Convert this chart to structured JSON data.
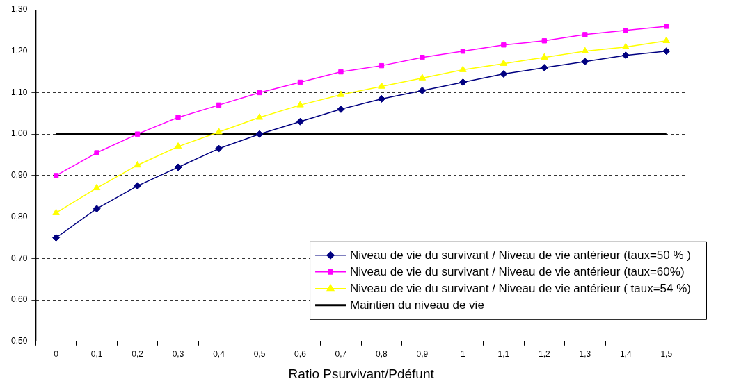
{
  "chart_data": {
    "type": "line",
    "xlabel": "Ratio Psurvivant/Pdéfunt",
    "categories": [
      "0",
      "0,1",
      "0,2",
      "0,3",
      "0,4",
      "0,5",
      "0,6",
      "0,7",
      "0,8",
      "0,9",
      "1",
      "1,1",
      "1,2",
      "1,3",
      "1,4",
      "1,5"
    ],
    "series": [
      {
        "name": "Niveau de vie du survivant / Niveau de vie antérieur (taux=50 % )",
        "color": "#000080",
        "marker": "diamond",
        "values": [
          0.75,
          0.82,
          0.875,
          0.92,
          0.965,
          1.0,
          1.03,
          1.06,
          1.085,
          1.105,
          1.125,
          1.145,
          1.16,
          1.175,
          1.19,
          1.2
        ]
      },
      {
        "name": "Niveau de vie du survivant / Niveau de vie antérieur (taux=60%)",
        "color": "#ff00ff",
        "marker": "square",
        "values": [
          0.9,
          0.955,
          1.0,
          1.04,
          1.07,
          1.1,
          1.125,
          1.15,
          1.165,
          1.185,
          1.2,
          1.215,
          1.225,
          1.24,
          1.25,
          1.26
        ]
      },
      {
        "name": "Niveau de vie du survivant / Niveau de vie antérieur ( taux=54 %)",
        "color": "#ffff00",
        "marker": "triangle",
        "values": [
          0.81,
          0.87,
          0.925,
          0.97,
          1.005,
          1.04,
          1.07,
          1.095,
          1.115,
          1.135,
          1.155,
          1.17,
          1.185,
          1.2,
          1.21,
          1.225
        ]
      },
      {
        "name": "Maintien du niveau de vie",
        "color": "#000000",
        "marker": "none",
        "values": [
          1,
          1,
          1,
          1,
          1,
          1,
          1,
          1,
          1,
          1,
          1,
          1,
          1,
          1,
          1,
          1
        ]
      }
    ],
    "ylim": [
      0.5,
      1.3
    ],
    "yticks": [
      {
        "value": 0.5,
        "label": "0,50"
      },
      {
        "value": 0.6,
        "label": "0,60"
      },
      {
        "value": 0.7,
        "label": "0,70"
      },
      {
        "value": 0.8,
        "label": "0,80"
      },
      {
        "value": 0.9,
        "label": "0,90"
      },
      {
        "value": 1.0,
        "label": "1,00"
      },
      {
        "value": 1.1,
        "label": "1,10"
      },
      {
        "value": 1.2,
        "label": "1,20"
      },
      {
        "value": 1.3,
        "label": "1,30"
      }
    ],
    "grid": "y",
    "legend": "bottom right"
  }
}
